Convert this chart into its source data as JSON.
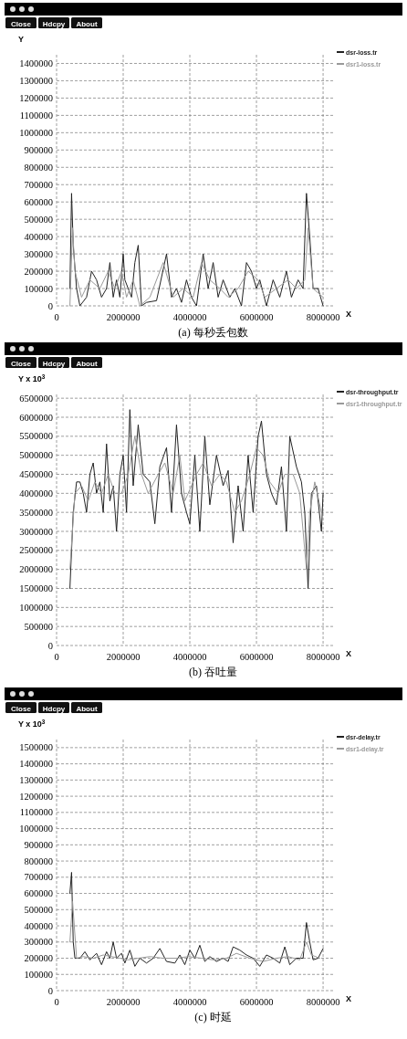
{
  "chart_data": [
    {
      "type": "line",
      "title": "(a) 每秒丢包数",
      "xlabel": "X",
      "ylabel": "Y",
      "annotations": [
        "Close",
        "Hdcpy",
        "About"
      ],
      "xlim": [
        0,
        8300000
      ],
      "ylim": [
        0,
        1450000
      ],
      "xticks": [
        0,
        2000000,
        4000000,
        6000000,
        8000000
      ],
      "yticks": [
        0,
        100000,
        200000,
        300000,
        400000,
        500000,
        600000,
        700000,
        800000,
        900000,
        1000000,
        1100000,
        1200000,
        1300000,
        1400000
      ],
      "grid": true,
      "legend": "right",
      "line_style": "solid",
      "series": [
        {
          "name": "dsr-loss.tr",
          "color": "#222222",
          "x": [
            400000,
            450000,
            500000,
            600000,
            700000,
            900000,
            1050000,
            1200000,
            1350000,
            1500000,
            1600000,
            1700000,
            1800000,
            1900000,
            2000000,
            2050000,
            2150000,
            2250000,
            2350000,
            2450000,
            2550000,
            2700000,
            3000000,
            3300000,
            3450000,
            3600000,
            3750000,
            3900000,
            4050000,
            4200000,
            4400000,
            4550000,
            4700000,
            4850000,
            5000000,
            5200000,
            5350000,
            5550000,
            5700000,
            5850000,
            6000000,
            6100000,
            6300000,
            6500000,
            6700000,
            6900000,
            7050000,
            7250000,
            7400000,
            7500000,
            7600000,
            7700000,
            7850000,
            8000000
          ],
          "values": [
            100000,
            650000,
            350000,
            100000,
            0,
            50000,
            200000,
            150000,
            50000,
            100000,
            250000,
            50000,
            150000,
            50000,
            300000,
            150000,
            100000,
            50000,
            250000,
            350000,
            0,
            20000,
            30000,
            300000,
            50000,
            100000,
            20000,
            150000,
            50000,
            0,
            300000,
            100000,
            250000,
            50000,
            150000,
            50000,
            100000,
            0,
            250000,
            200000,
            100000,
            150000,
            0,
            150000,
            50000,
            200000,
            50000,
            150000,
            100000,
            650000,
            400000,
            100000,
            100000,
            0
          ]
        },
        {
          "name": "dsr1-loss.tr",
          "color": "#999999",
          "x": [
            400000,
            480000,
            550000,
            750000,
            1000000,
            1300000,
            1550000,
            1750000,
            1950000,
            2100000,
            2300000,
            2500000,
            2800000,
            3200000,
            3500000,
            3800000,
            4100000,
            4350000,
            4600000,
            4900000,
            5150000,
            5450000,
            5750000,
            6050000,
            6250000,
            6600000,
            6950000,
            7200000,
            7450000,
            7550000,
            7700000,
            8000000
          ],
          "values": [
            0,
            450000,
            200000,
            50000,
            150000,
            100000,
            200000,
            100000,
            200000,
            50000,
            150000,
            0,
            50000,
            250000,
            50000,
            100000,
            50000,
            250000,
            150000,
            100000,
            50000,
            100000,
            200000,
            150000,
            50000,
            100000,
            150000,
            100000,
            150000,
            450000,
            100000,
            50000
          ]
        }
      ]
    },
    {
      "type": "line",
      "title": "(b) 吞吐量",
      "xlabel": "X",
      "ylabel": "Y x 10$^{3}$",
      "annotations": [
        "Close",
        "Hdcpy",
        "About"
      ],
      "xlim": [
        0,
        8300000
      ],
      "ylim": [
        0,
        6600000
      ],
      "xticks": [
        0,
        2000000,
        4000000,
        6000000,
        8000000
      ],
      "yticks": [
        0,
        500000,
        1000000,
        1500000,
        2000000,
        2500000,
        3000000,
        3500000,
        4000000,
        4500000,
        5000000,
        5500000,
        6000000,
        6500000
      ],
      "grid": true,
      "legend": "right",
      "line_style": "solid",
      "series": [
        {
          "name": "dsr-throughput.tr",
          "color": "#222222",
          "x": [
            400000,
            500000,
            600000,
            700000,
            800000,
            900000,
            1000000,
            1100000,
            1200000,
            1300000,
            1400000,
            1500000,
            1600000,
            1700000,
            1800000,
            1900000,
            2000000,
            2100000,
            2200000,
            2300000,
            2450000,
            2600000,
            2800000,
            2950000,
            3100000,
            3300000,
            3450000,
            3600000,
            3750000,
            3900000,
            4000000,
            4150000,
            4300000,
            4450000,
            4600000,
            4800000,
            5000000,
            5150000,
            5300000,
            5450000,
            5600000,
            5750000,
            5900000,
            6050000,
            6150000,
            6300000,
            6450000,
            6600000,
            6750000,
            6900000,
            7000000,
            7200000,
            7350000,
            7450000,
            7550000,
            7650000,
            7800000,
            7950000,
            8000000
          ],
          "values": [
            1500000,
            3500000,
            4300000,
            4300000,
            4000000,
            3500000,
            4500000,
            4800000,
            4000000,
            4300000,
            3500000,
            5300000,
            3800000,
            4200000,
            3000000,
            4500000,
            5000000,
            3500000,
            6200000,
            4200000,
            5800000,
            4500000,
            4300000,
            3200000,
            4700000,
            5200000,
            3500000,
            5800000,
            4000000,
            3500000,
            3200000,
            5000000,
            3000000,
            5500000,
            3700000,
            5000000,
            4200000,
            4600000,
            2700000,
            4200000,
            3000000,
            5000000,
            3500000,
            5500000,
            5900000,
            4500000,
            4000000,
            3700000,
            4700000,
            3000000,
            5500000,
            4700000,
            4300000,
            3500000,
            1500000,
            4000000,
            4200000,
            3000000,
            4000000
          ]
        },
        {
          "name": "dsr1-throughput.tr",
          "color": "#999999",
          "x": [
            400000,
            550000,
            750000,
            950000,
            1150000,
            1350000,
            1550000,
            1750000,
            1950000,
            2150000,
            2350000,
            2550000,
            2750000,
            3050000,
            3250000,
            3500000,
            3700000,
            3850000,
            4200000,
            4400000,
            4650000,
            4900000,
            5100000,
            5350000,
            5550000,
            5800000,
            6000000,
            6200000,
            6400000,
            6650000,
            6850000,
            7100000,
            7300000,
            7500000,
            7600000,
            7750000,
            7950000
          ],
          "values": [
            2000000,
            4000000,
            4200000,
            3800000,
            4300000,
            4000000,
            4500000,
            4000000,
            4000000,
            4500000,
            5500000,
            4500000,
            4000000,
            4500000,
            4800000,
            4000000,
            5000000,
            3800000,
            4500000,
            4800000,
            4200000,
            4500000,
            4300000,
            3500000,
            3800000,
            4500000,
            5200000,
            5000000,
            4300000,
            4000000,
            4500000,
            4500000,
            4000000,
            2000000,
            3500000,
            4300000,
            3500000
          ]
        }
      ]
    },
    {
      "type": "line",
      "title": "(c) 时延",
      "xlabel": "X",
      "ylabel": "Y x 10$^{3}$",
      "annotations": [
        "Close",
        "Hdcpy",
        "About"
      ],
      "xlim": [
        0,
        8300000
      ],
      "ylim": [
        0,
        1550000
      ],
      "xticks": [
        0,
        2000000,
        4000000,
        6000000,
        8000000
      ],
      "yticks": [
        0,
        100000,
        200000,
        300000,
        400000,
        500000,
        600000,
        700000,
        800000,
        900000,
        1000000,
        1100000,
        1200000,
        1300000,
        1400000,
        1500000
      ],
      "grid": true,
      "legend": "right",
      "line_style": "solid",
      "series": [
        {
          "name": "dsr-delay.tr",
          "color": "#222222",
          "x": [
            400000,
            450000,
            500000,
            550000,
            700000,
            850000,
            1000000,
            1200000,
            1350000,
            1500000,
            1600000,
            1700000,
            1800000,
            1950000,
            2050000,
            2200000,
            2350000,
            2500000,
            2700000,
            2900000,
            3100000,
            3300000,
            3550000,
            3700000,
            3850000,
            4000000,
            4150000,
            4300000,
            4450000,
            4600000,
            4800000,
            5000000,
            5150000,
            5300000,
            5500000,
            5700000,
            5900000,
            6100000,
            6300000,
            6500000,
            6700000,
            6850000,
            7000000,
            7200000,
            7400000,
            7500000,
            7600000,
            7700000,
            7850000,
            8000000
          ],
          "values": [
            600000,
            730000,
            300000,
            200000,
            200000,
            240000,
            190000,
            230000,
            160000,
            240000,
            200000,
            300000,
            200000,
            230000,
            170000,
            250000,
            150000,
            200000,
            170000,
            200000,
            260000,
            180000,
            170000,
            220000,
            160000,
            250000,
            200000,
            280000,
            180000,
            210000,
            180000,
            200000,
            180000,
            270000,
            250000,
            220000,
            200000,
            150000,
            220000,
            200000,
            170000,
            270000,
            160000,
            200000,
            200000,
            420000,
            300000,
            190000,
            200000,
            260000
          ]
        },
        {
          "name": "dsr1-delay.tr",
          "color": "#999999",
          "x": [
            400000,
            480000,
            600000,
            800000,
            1100000,
            1400000,
            1650000,
            1900000,
            2150000,
            2450000,
            2800000,
            3200000,
            3600000,
            3950000,
            4350000,
            4700000,
            5100000,
            5400000,
            5800000,
            6200000,
            6600000,
            6950000,
            7300000,
            7500000,
            7650000,
            7900000
          ],
          "values": [
            300000,
            550000,
            200000,
            210000,
            200000,
            220000,
            210000,
            200000,
            190000,
            200000,
            210000,
            200000,
            200000,
            210000,
            200000,
            190000,
            200000,
            230000,
            200000,
            180000,
            200000,
            210000,
            190000,
            300000,
            220000,
            200000
          ]
        }
      ]
    }
  ]
}
